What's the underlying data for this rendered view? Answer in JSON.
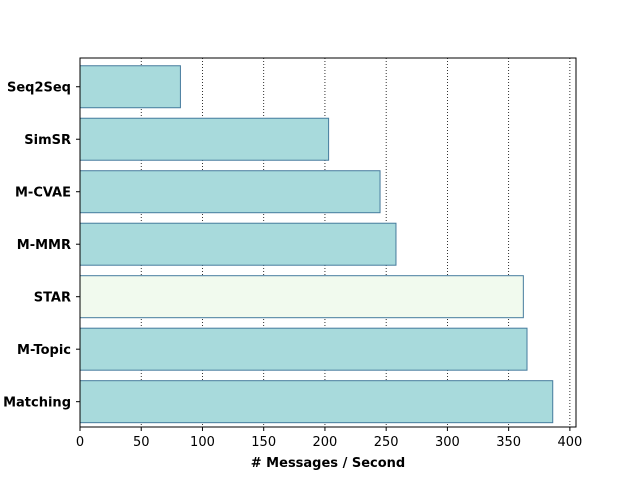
{
  "chart_data": {
    "type": "bar",
    "orientation": "horizontal",
    "categories": [
      "Seq2Seq",
      "SimSR",
      "M-CVAE",
      "M-MMR",
      "STAR",
      "M-Topic",
      "Matching"
    ],
    "values": [
      82,
      203,
      245,
      258,
      362,
      365,
      386
    ],
    "xlabel": "# Messages / Second",
    "ylabel": "",
    "xlim": [
      0,
      405
    ],
    "xticks": [
      0,
      50,
      100,
      150,
      200,
      250,
      300,
      350,
      400
    ],
    "grid": "vertical dotted",
    "colors": {
      "bar_fill": "#a8dadc",
      "highlight_fill": "#f1faee",
      "bar_edge": "#457b9d",
      "grid": "#000000"
    },
    "highlight_category": "STAR"
  }
}
